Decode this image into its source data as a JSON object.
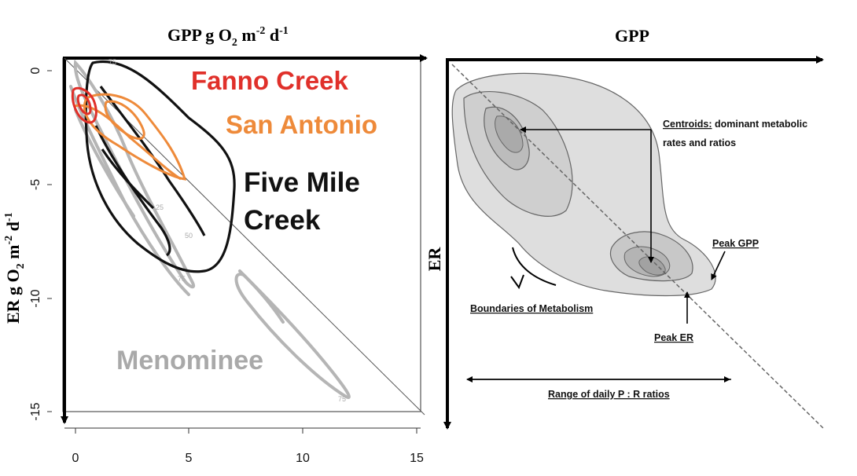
{
  "left_panel": {
    "x_title": "GPP g O",
    "x_title_sub": "2",
    "x_title_unit": " m",
    "x_title_exp1": "-2",
    "x_title_d": " d",
    "x_title_exp2": "-1",
    "y_title": "ER g O",
    "y_title_sub": "2",
    "y_title_unit": " m",
    "y_title_exp1": "-2",
    "y_title_d": " d",
    "y_title_exp2": "-1"
  },
  "right_panel": {
    "x_title": "GPP",
    "y_title": "ER",
    "annotations": {
      "centroids_bold": "Centroids:",
      "centroids_rest": " dominant metabolic",
      "centroids_line2": "rates and ratios",
      "peak_gpp": "Peak GPP",
      "peak_er": "Peak ER",
      "boundaries": "Boundaries of Metabolism",
      "range": "Range of daily P : R ratios"
    }
  },
  "chart_data": [
    {
      "type": "contour",
      "xlim": [
        0,
        15
      ],
      "ylim": [
        -15,
        0
      ],
      "x_ticks": [
        "0",
        "5",
        "10",
        "15"
      ],
      "y_ticks": [
        "0",
        "-5",
        "-10",
        "-15"
      ],
      "reference_line": "1:1",
      "series": [
        {
          "name": "Fanno Creek",
          "color": "#e0302a"
        },
        {
          "name": "San Antonio",
          "color": "#ee8a3a"
        },
        {
          "name": "Five Mile Creek",
          "name_line1": "Five Mile",
          "name_line2": "Creek",
          "color": "#111111"
        },
        {
          "name": "Menominee",
          "color": "#a9a9a9"
        }
      ],
      "contour_levels": [
        "25",
        "50",
        "75"
      ]
    },
    {
      "type": "schematic",
      "shading": [
        "#dcdcdc",
        "#c8c8c8",
        "#b4b4b4"
      ]
    }
  ]
}
